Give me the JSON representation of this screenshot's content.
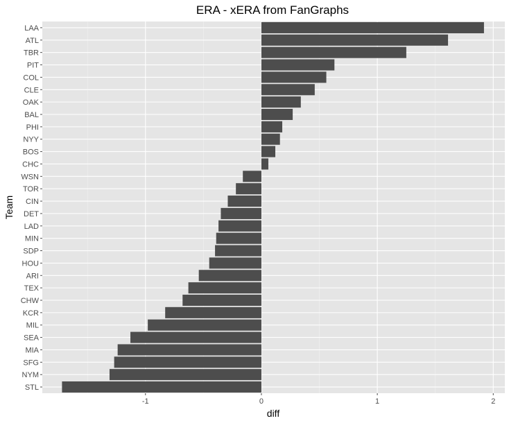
{
  "chart_data": {
    "type": "bar",
    "orientation": "horizontal",
    "title": "ERA - xERA from FanGraphs",
    "xlabel": "diff",
    "ylabel": "Team",
    "categories": [
      "LAA",
      "ATL",
      "TBR",
      "PIT",
      "COL",
      "CLE",
      "OAK",
      "BAL",
      "PHI",
      "NYY",
      "BOS",
      "CHC",
      "WSN",
      "TOR",
      "CIN",
      "DET",
      "LAD",
      "MIN",
      "SDP",
      "HOU",
      "ARI",
      "TEX",
      "CHW",
      "KCR",
      "MIL",
      "SEA",
      "MIA",
      "SFG",
      "NYM",
      "STL"
    ],
    "values": [
      1.92,
      1.61,
      1.25,
      0.63,
      0.56,
      0.46,
      0.34,
      0.27,
      0.18,
      0.16,
      0.12,
      0.06,
      -0.16,
      -0.22,
      -0.29,
      -0.35,
      -0.37,
      -0.39,
      -0.4,
      -0.45,
      -0.54,
      -0.63,
      -0.68,
      -0.83,
      -0.98,
      -1.13,
      -1.24,
      -1.27,
      -1.31,
      -1.72
    ],
    "xlim": [
      -1.89,
      2.1
    ],
    "xticks": [
      -1,
      0,
      1,
      2
    ],
    "xtick_labels": [
      "-1",
      "0",
      "1",
      "2"
    ],
    "grid": true,
    "legend": "none",
    "colors": {
      "bar": "#4d4d4d",
      "panel": "#e5e5e5",
      "grid_major": "#ffffff",
      "grid_minor": "#f0f0f0",
      "tick": "#4d4d4d",
      "text": "#000000"
    }
  }
}
